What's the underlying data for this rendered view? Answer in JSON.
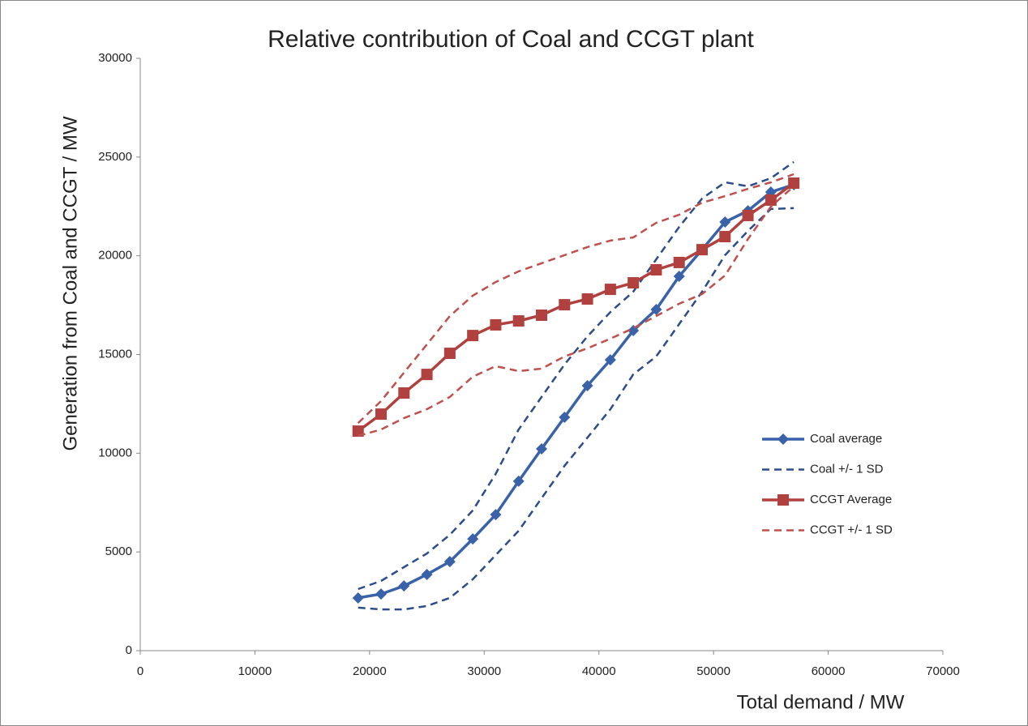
{
  "chart_data": {
    "type": "line",
    "title": "Relative contribution of Coal and CCGT plant",
    "x_label": "Total demand / MW",
    "y_label": "Generation  from Coal and CCGT / MW",
    "x": [
      19000,
      21000,
      23000,
      25000,
      27000,
      29000,
      31000,
      33000,
      35000,
      37000,
      39000,
      41000,
      43000,
      45000,
      47000,
      49000,
      51000,
      53000,
      55000,
      57000
    ],
    "xlim": [
      0,
      70000
    ],
    "xticks": [
      0,
      10000,
      20000,
      30000,
      40000,
      50000,
      60000,
      70000
    ],
    "ylim": [
      0,
      30000
    ],
    "yticks": [
      0,
      5000,
      10000,
      15000,
      20000,
      25000,
      30000
    ],
    "grid": false,
    "legend": "right",
    "series": [
      {
        "name": "Coal average",
        "color": "#3a62a8",
        "marker": "diamond",
        "dashed": false,
        "values": [
          2670,
          2870,
          3280,
          3860,
          4510,
          5660,
          6890,
          8580,
          10220,
          11820,
          13420,
          14730,
          16210,
          17280,
          18960,
          20310,
          21710,
          22280,
          23230,
          23600
        ]
      },
      {
        "name": "Coal +/- 1 SD",
        "color": "#2c4d8a",
        "marker": "none",
        "dashed": true,
        "upper": [
          3120,
          3530,
          4230,
          4920,
          5870,
          7100,
          8950,
          11200,
          12850,
          14490,
          15920,
          17150,
          18180,
          19820,
          21460,
          22900,
          23720,
          23520,
          23930,
          24750
        ],
        "lower": [
          2180,
          2090,
          2090,
          2260,
          2670,
          3610,
          4840,
          6070,
          7720,
          9360,
          10790,
          12230,
          13990,
          14900,
          16540,
          18180,
          20030,
          21260,
          22370,
          22410
        ]
      },
      {
        "name": "CCGT Average",
        "color": "#b0413e",
        "marker": "square",
        "dashed": false,
        "values": [
          11120,
          11980,
          13050,
          13990,
          15060,
          15960,
          16500,
          16700,
          16990,
          17520,
          17810,
          18300,
          18630,
          19290,
          19660,
          20310,
          20970,
          22040,
          22820,
          23680
        ]
      },
      {
        "name": "CCGT +/- 1 SD",
        "color": "#c0504d",
        "marker": "none",
        "dashed": true,
        "upper": [
          11530,
          12640,
          14080,
          15510,
          16950,
          17980,
          18670,
          19210,
          19620,
          20030,
          20440,
          20770,
          20930,
          21670,
          22080,
          22690,
          23020,
          23390,
          23720,
          24130
        ],
        "lower": [
          10880,
          11200,
          11780,
          12230,
          12850,
          13870,
          14410,
          14160,
          14280,
          14900,
          15310,
          15800,
          16330,
          16950,
          17570,
          18060,
          19000,
          20850,
          22490,
          23520
        ]
      }
    ]
  }
}
